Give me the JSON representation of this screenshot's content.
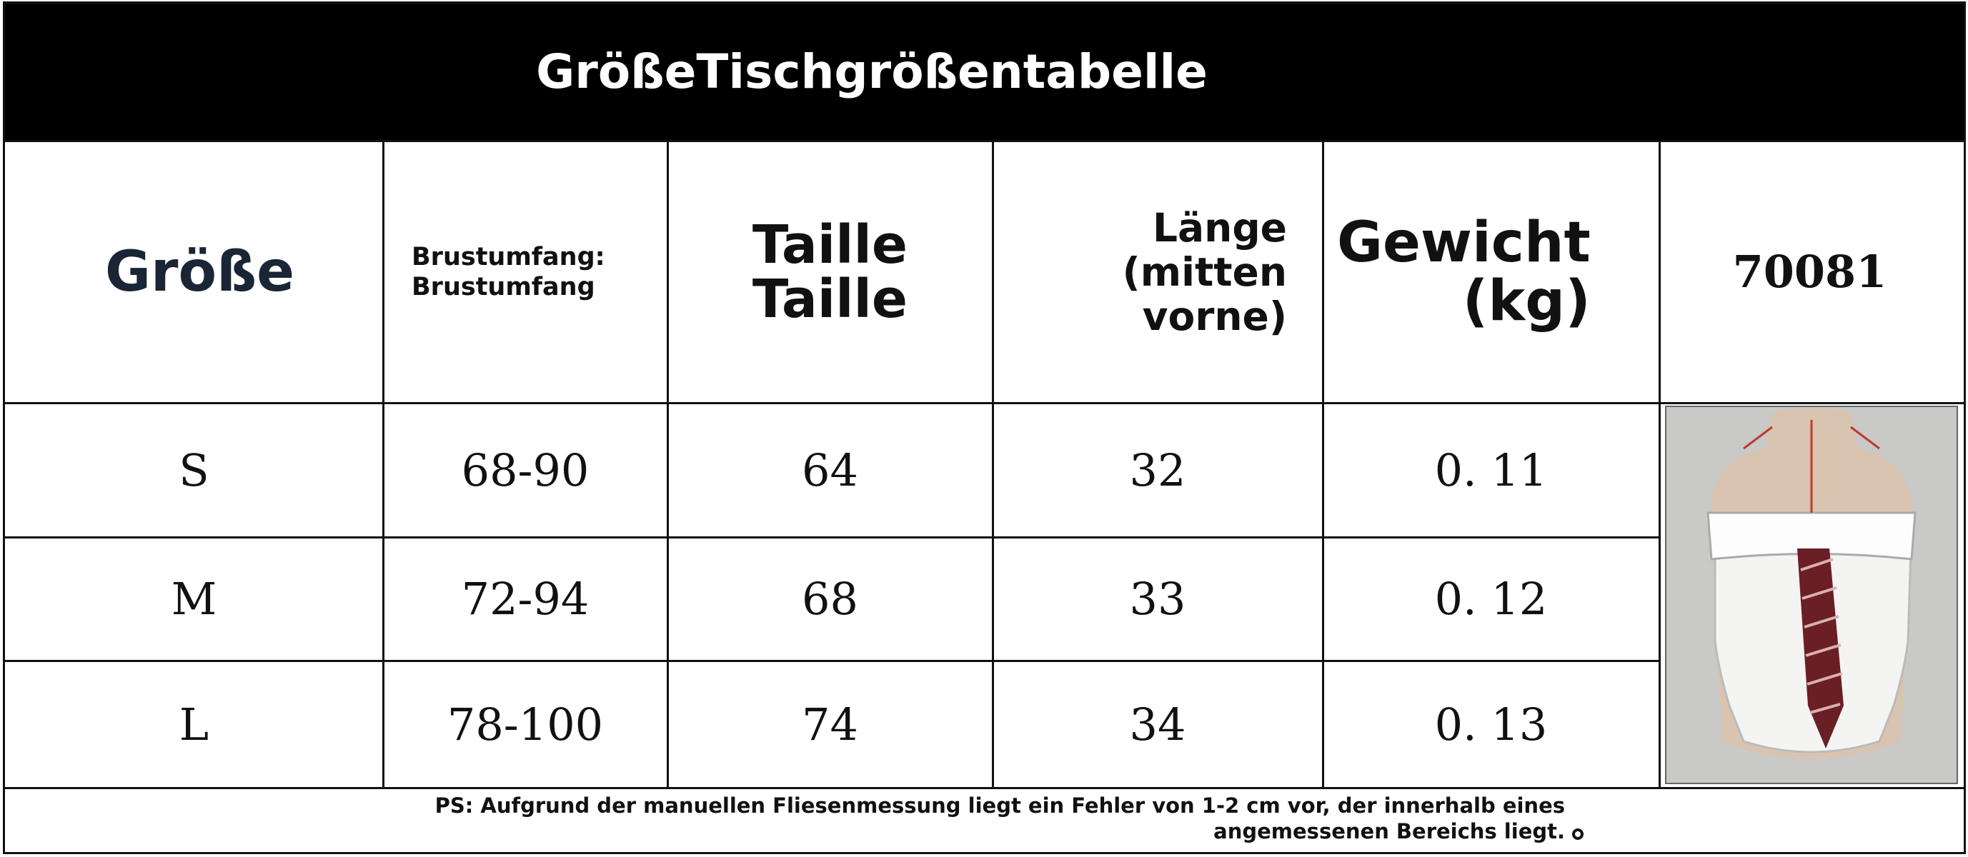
{
  "header": {
    "title": "GrößeTischgrößentabelle"
  },
  "table": {
    "columns": [
      "Größe",
      "Brustumfang: Brustumfang",
      "Taille Taille",
      "Länge (mitten vorne)",
      "Gewicht (kg)",
      "70081"
    ],
    "rows": [
      [
        "S",
        "68-90",
        "64",
        "32",
        "0. 11"
      ],
      [
        "M",
        "72-94",
        "68",
        "33",
        "0. 12"
      ],
      [
        "L",
        "78-100",
        "74",
        "34",
        "0. 13"
      ]
    ]
  },
  "footnote": "PS: Aufgrund der manuellen Fliesenmessung liegt ein Fehler von 1-2 cm vor, der innerhalb eines angemessenen Bereichs liegt."
}
